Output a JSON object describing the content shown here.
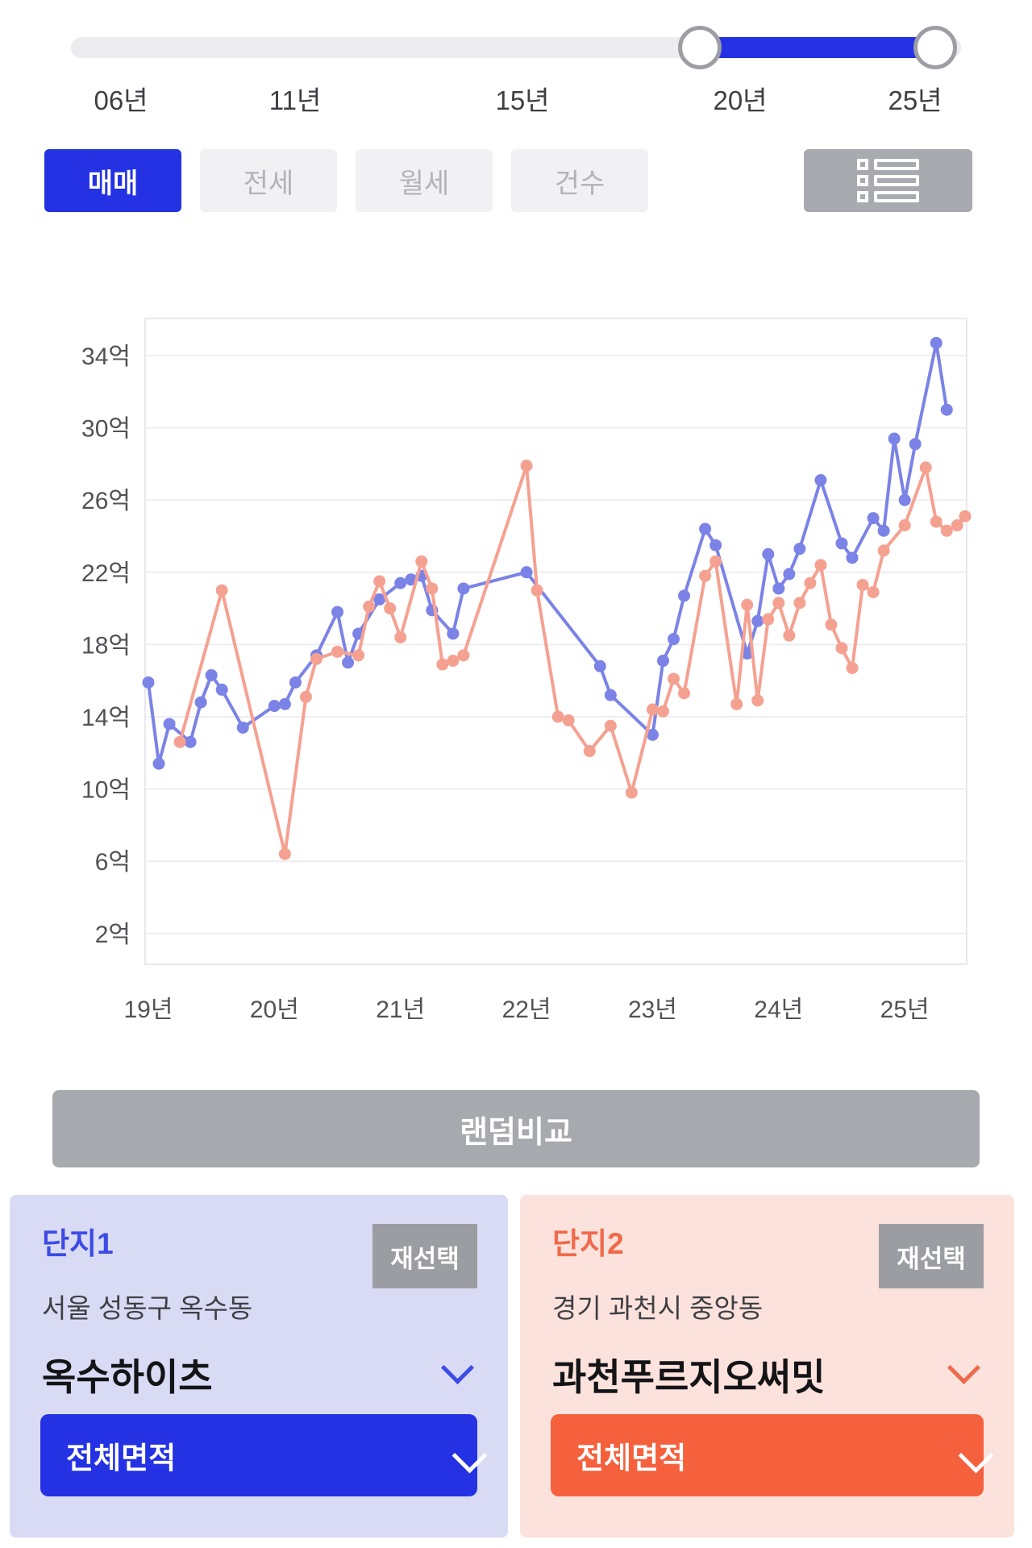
{
  "slider": {
    "labels": [
      "06년",
      "11년",
      "15년",
      "20년",
      "25년"
    ],
    "selected_range": [
      "20년",
      "25년"
    ]
  },
  "tabs": {
    "items": [
      {
        "label": "매매",
        "active": true
      },
      {
        "label": "전세",
        "active": false
      },
      {
        "label": "월세",
        "active": false
      },
      {
        "label": "건수",
        "active": false
      }
    ]
  },
  "chart_data": {
    "type": "line",
    "unit": "억",
    "y_ticks": [
      34,
      30,
      26,
      22,
      18,
      14,
      10,
      6,
      2
    ],
    "y_tick_labels": [
      "34억",
      "30억",
      "26억",
      "22억",
      "18억",
      "14억",
      "10억",
      "6억",
      "2억"
    ],
    "x_tick_labels": [
      "19년",
      "20년",
      "21년",
      "22년",
      "23년",
      "24년",
      "25년"
    ],
    "x_tick_months": [
      0,
      12,
      24,
      36,
      48,
      60,
      72
    ],
    "x_unit": "months since 2019-01",
    "xlim": [
      0,
      78
    ],
    "ylim": [
      0,
      36
    ],
    "grid": true,
    "legend": false,
    "series": [
      {
        "name": "옥수하이츠",
        "color": "#7b83e6",
        "points": [
          [
            0,
            15.9
          ],
          [
            1,
            11.4
          ],
          [
            2,
            13.6
          ],
          [
            4,
            12.6
          ],
          [
            5,
            14.8
          ],
          [
            6,
            16.3
          ],
          [
            7,
            15.5
          ],
          [
            9,
            13.4
          ],
          [
            12,
            14.6
          ],
          [
            13,
            14.7
          ],
          [
            14,
            15.9
          ],
          [
            16,
            17.4
          ],
          [
            18,
            19.8
          ],
          [
            19,
            17.0
          ],
          [
            20,
            18.6
          ],
          [
            22,
            20.5
          ],
          [
            24,
            21.4
          ],
          [
            25,
            21.6
          ],
          [
            26,
            21.8
          ],
          [
            27,
            19.9
          ],
          [
            29,
            18.6
          ],
          [
            30,
            21.1
          ],
          [
            36,
            22.0
          ],
          [
            43,
            16.8
          ],
          [
            44,
            15.2
          ],
          [
            48,
            13.0
          ],
          [
            49,
            17.1
          ],
          [
            50,
            18.3
          ],
          [
            51,
            20.7
          ],
          [
            53,
            24.4
          ],
          [
            54,
            23.5
          ],
          [
            57,
            17.5
          ],
          [
            58,
            19.3
          ],
          [
            59,
            23.0
          ],
          [
            60,
            21.1
          ],
          [
            61,
            21.9
          ],
          [
            62,
            23.3
          ],
          [
            64,
            27.1
          ],
          [
            66,
            23.6
          ],
          [
            67,
            22.8
          ],
          [
            69,
            25.0
          ],
          [
            70,
            24.3
          ],
          [
            71,
            29.4
          ],
          [
            72,
            26.0
          ],
          [
            73,
            29.1
          ],
          [
            75,
            34.7
          ],
          [
            76,
            31.0
          ]
        ]
      },
      {
        "name": "과천푸르지오써밋",
        "color": "#f5a191",
        "points": [
          [
            3,
            12.6
          ],
          [
            7,
            21.0
          ],
          [
            13,
            6.4
          ],
          [
            15,
            15.1
          ],
          [
            16,
            17.2
          ],
          [
            18,
            17.6
          ],
          [
            20,
            17.4
          ],
          [
            21,
            20.1
          ],
          [
            22,
            21.5
          ],
          [
            23,
            20.0
          ],
          [
            24,
            18.4
          ],
          [
            26,
            22.6
          ],
          [
            27,
            21.1
          ],
          [
            28,
            16.9
          ],
          [
            29,
            17.1
          ],
          [
            30,
            17.4
          ],
          [
            36,
            27.9
          ],
          [
            37,
            21.0
          ],
          [
            39,
            14.0
          ],
          [
            40,
            13.8
          ],
          [
            42,
            12.1
          ],
          [
            44,
            13.5
          ],
          [
            46,
            9.8
          ],
          [
            48,
            14.4
          ],
          [
            49,
            14.3
          ],
          [
            50,
            16.1
          ],
          [
            51,
            15.3
          ],
          [
            53,
            21.8
          ],
          [
            54,
            22.6
          ],
          [
            56,
            14.7
          ],
          [
            57,
            20.2
          ],
          [
            58,
            14.9
          ],
          [
            59,
            19.4
          ],
          [
            60,
            20.3
          ],
          [
            61,
            18.5
          ],
          [
            62,
            20.3
          ],
          [
            63,
            21.4
          ],
          [
            64,
            22.4
          ],
          [
            65,
            19.1
          ],
          [
            66,
            17.8
          ],
          [
            67,
            16.7
          ],
          [
            68,
            21.3
          ],
          [
            69,
            20.9
          ],
          [
            70,
            23.2
          ],
          [
            72,
            24.6
          ],
          [
            74,
            27.8
          ],
          [
            75,
            24.8
          ],
          [
            76,
            24.3
          ],
          [
            77,
            24.6
          ],
          [
            78,
            25.1
          ]
        ]
      }
    ]
  },
  "random_compare_label": "랜덤비교",
  "cards": [
    {
      "title": "단지1",
      "reselect_label": "재선택",
      "location": "서울 성동구 옥수동",
      "complex_name": "옥수하이츠",
      "area_label": "전체면적",
      "accent": "#3c4be4",
      "button_color": "#2432e4",
      "bg": "#d9dbf5"
    },
    {
      "title": "단지2",
      "reselect_label": "재선택",
      "location": "경기 과천시 중앙동",
      "complex_name": "과천푸르지오써밋",
      "area_label": "전체면적",
      "accent": "#ef6a4b",
      "button_color": "#f5603d",
      "bg": "#fce2dc"
    }
  ],
  "colors": {
    "primary_blue": "#2432e4",
    "series_blue": "#7b83e6",
    "series_salmon": "#f5a191",
    "gray_button": "#a8a9ae",
    "inactive_tab_bg": "#f1f1f4",
    "inactive_tab_text": "#b2b3b9"
  }
}
